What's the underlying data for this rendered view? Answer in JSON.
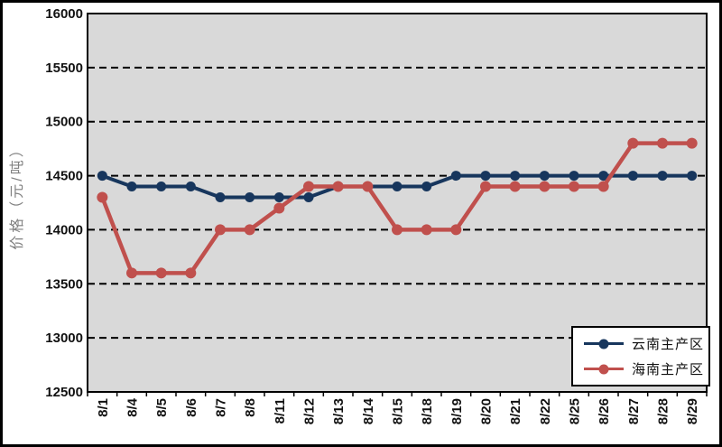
{
  "chart_data": {
    "type": "line",
    "title": "",
    "xlabel": "",
    "ylabel": "价格（元/吨）",
    "ylim": [
      12500,
      16000
    ],
    "y_ticks": [
      16000,
      15500,
      15000,
      14500,
      14000,
      13500,
      13000,
      12500
    ],
    "grid": "dashed-horizontal",
    "plot_bg": "#d9d9d9",
    "legend_position": "inside-bottom-right",
    "categories": [
      "8/1",
      "8/4",
      "8/5",
      "8/6",
      "8/7",
      "8/8",
      "8/11",
      "8/12",
      "8/13",
      "8/14",
      "8/15",
      "8/18",
      "8/19",
      "8/20",
      "8/21",
      "8/22",
      "8/25",
      "8/26",
      "8/27",
      "8/28",
      "8/29"
    ],
    "series": [
      {
        "name": "云南主产区",
        "color": "#17365d",
        "marker": "circle",
        "values": [
          14500,
          14400,
          14400,
          14400,
          14300,
          14300,
          14300,
          14300,
          14400,
          14400,
          14400,
          14400,
          14500,
          14500,
          14500,
          14500,
          14500,
          14500,
          14500,
          14500,
          14500
        ]
      },
      {
        "name": "海南主产区",
        "color": "#c0504d",
        "marker": "circle",
        "values": [
          14300,
          13600,
          13600,
          13600,
          14000,
          14000,
          14200,
          14400,
          14400,
          14400,
          14000,
          14000,
          14000,
          14400,
          14400,
          14400,
          14400,
          14400,
          14800,
          14800,
          14800
        ]
      }
    ]
  }
}
